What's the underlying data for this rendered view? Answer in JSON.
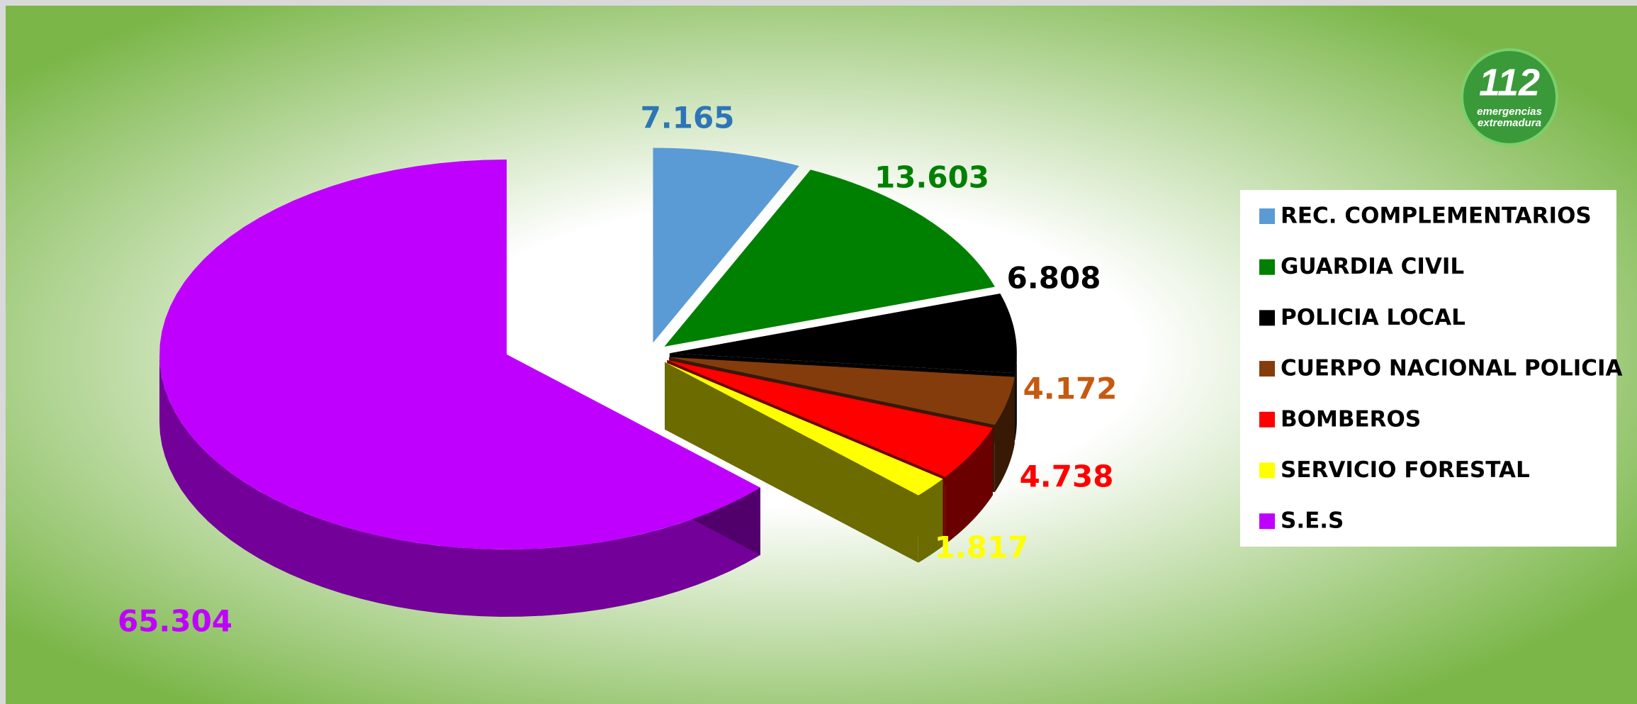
{
  "chart_data": {
    "type": "pie3d",
    "categories": [
      "REC. COMPLEMENTARIOS",
      "GUARDIA CIVIL",
      "POLICIA LOCAL",
      "CUERPO NACIONAL POLICIA",
      "BOMBEROS",
      "SERVICIO FORESTAL",
      "S.E.S"
    ],
    "values": [
      7165,
      13603,
      6808,
      4172,
      4738,
      1817,
      65304
    ],
    "value_labels": [
      "7.165",
      "13.603",
      "6.808",
      "4.172",
      "4.738",
      "1.817",
      "65.304"
    ],
    "colors": [
      "#5b9bd5",
      "#008000",
      "#000000",
      "#843c0c",
      "#ff0000",
      "#ffff00",
      "#c000ff"
    ],
    "label_colors": [
      "#2e75b6",
      "#008000",
      "#000000",
      "#c55a11",
      "#ff0000",
      "#ffff00",
      "#c000ff"
    ],
    "legend": "right",
    "logo": {
      "number": "112",
      "line1": "emergencias",
      "line2": "extremadura"
    }
  }
}
